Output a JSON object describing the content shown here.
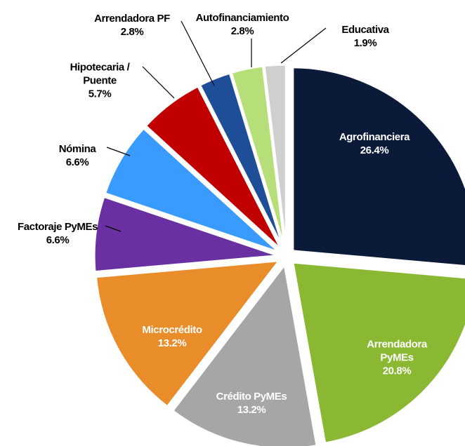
{
  "chart_data": {
    "type": "pie",
    "categories": [
      "Agrofinanciera",
      "Arrendadora PyMEs",
      "Crédito PyMEs",
      "Microcrédito",
      "Factoraje PyMEs",
      "Nómina",
      "Hipotecaria / Puente",
      "Arrendadora PF",
      "Autofinanciamiento",
      "Educativa"
    ],
    "values": [
      26.4,
      20.8,
      13.2,
      13.2,
      6.6,
      6.6,
      5.7,
      2.8,
      2.8,
      1.9
    ],
    "value_labels": [
      "26.4%",
      "20.8%",
      "13.2%",
      "13.2%",
      "6.6%",
      "6.6%",
      "5.7%",
      "2.8%",
      "2.8%",
      "1.9%"
    ],
    "colors": [
      "#0c1a3a",
      "#8ab833",
      "#a6a6a6",
      "#e98c2a",
      "#6a2fa0",
      "#3a9bff",
      "#c00000",
      "#1f4e99",
      "#b6df7a",
      "#cfcfcf"
    ]
  }
}
